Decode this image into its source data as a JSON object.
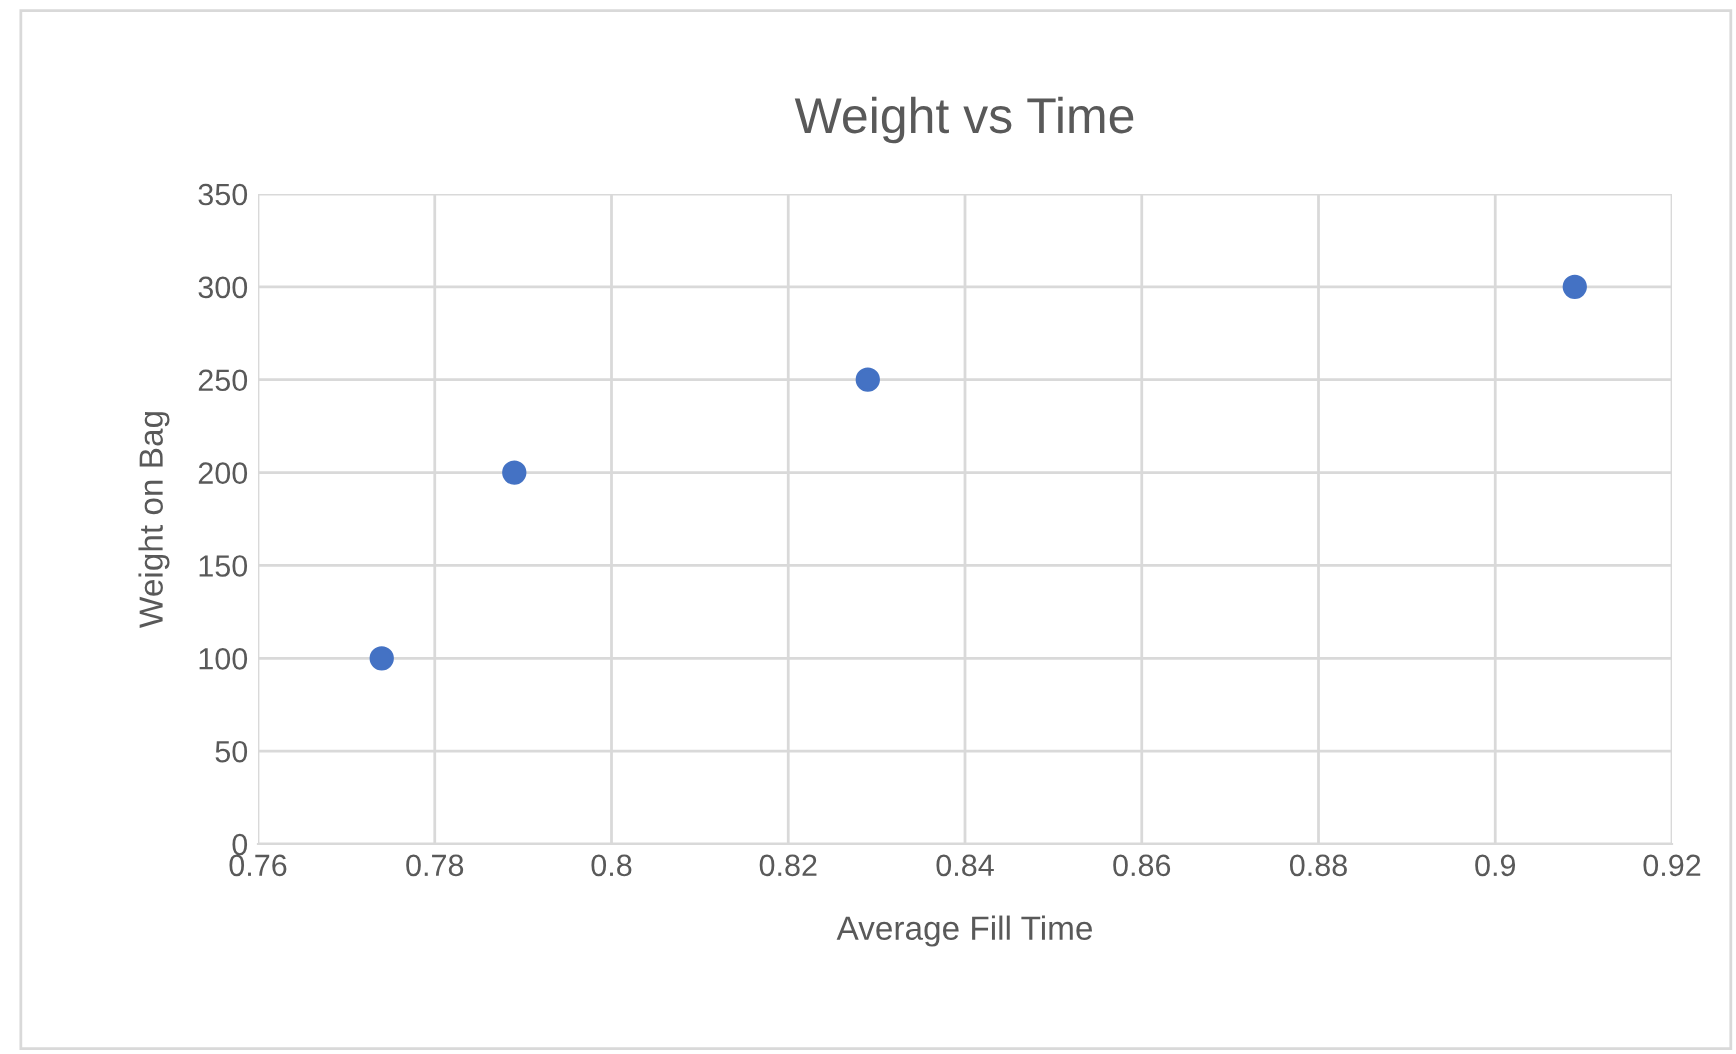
{
  "chart_data": {
    "type": "scatter",
    "title": "Weight vs Time",
    "xlabel": "Average Fill Time",
    "ylabel": "Weight on Bag",
    "x": [
      0.774,
      0.789,
      0.829,
      0.909
    ],
    "series": [
      {
        "color": "#4472c4",
        "values": [
          100,
          200,
          250,
          300
        ]
      }
    ],
    "xlim": [
      0.76,
      0.92
    ],
    "xticks": [
      0.76,
      0.78,
      {
        "value": 0.8,
        "label": "0.8"
      },
      0.82,
      0.84,
      0.86,
      0.88,
      {
        "value": 0.9,
        "label": "0.9"
      },
      0.92
    ],
    "ylim": [
      0,
      350
    ],
    "yticks": [
      0,
      50,
      100,
      150,
      200,
      250,
      300,
      350
    ],
    "grid": true,
    "marker": "circle",
    "legend": false
  }
}
